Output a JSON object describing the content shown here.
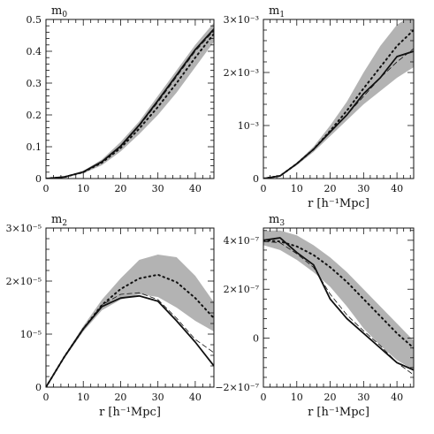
{
  "chart_data": [
    {
      "type": "line",
      "title": "m",
      "title_sub": "0",
      "xlabel": "",
      "ylabel": "",
      "xlim": [
        0,
        45
      ],
      "ylim": [
        0,
        0.5
      ],
      "x_ticks": [
        {
          "value": 0,
          "label": "0"
        },
        {
          "value": 10,
          "label": "10"
        },
        {
          "value": 20,
          "label": "20"
        },
        {
          "value": 30,
          "label": "30"
        },
        {
          "value": 40,
          "label": "40"
        }
      ],
      "y_ticks": [
        {
          "value": 0,
          "label": "0"
        },
        {
          "value": 0.1,
          "label": "0.1"
        },
        {
          "value": 0.2,
          "label": "0.2"
        },
        {
          "value": 0.3,
          "label": "0.3"
        },
        {
          "value": 0.4,
          "label": "0.4"
        },
        {
          "value": 0.5,
          "label": "0.5"
        }
      ],
      "x": [
        0,
        5,
        10,
        15,
        20,
        25,
        30,
        35,
        40,
        45
      ],
      "band": {
        "lower": [
          0,
          0.004,
          0.016,
          0.042,
          0.085,
          0.14,
          0.2,
          0.27,
          0.35,
          0.43
        ],
        "upper": [
          0,
          0.006,
          0.024,
          0.06,
          0.115,
          0.18,
          0.26,
          0.34,
          0.42,
          0.49
        ]
      },
      "series": [
        {
          "style": "dotted",
          "values": [
            0,
            0.005,
            0.02,
            0.05,
            0.096,
            0.157,
            0.225,
            0.3,
            0.38,
            0.455
          ]
        },
        {
          "style": "solid-thick",
          "values": [
            0,
            0.005,
            0.021,
            0.053,
            0.102,
            0.168,
            0.245,
            0.325,
            0.405,
            0.47
          ]
        },
        {
          "style": "solid-thin",
          "values": [
            0,
            0.005,
            0.02,
            0.052,
            0.1,
            0.165,
            0.24,
            0.32,
            0.4,
            0.465
          ]
        }
      ]
    },
    {
      "type": "line",
      "title": "m",
      "title_sub": "1",
      "xlabel": "r [h⁻¹Mpc]",
      "ylabel": "",
      "xlim": [
        0,
        45
      ],
      "ylim": [
        0,
        0.003
      ],
      "x_ticks": [
        {
          "value": 0,
          "label": "0"
        },
        {
          "value": 10,
          "label": "10"
        },
        {
          "value": 20,
          "label": "20"
        },
        {
          "value": 30,
          "label": "30"
        },
        {
          "value": 40,
          "label": "40"
        }
      ],
      "y_ticks": [
        {
          "value": 0,
          "label": "0"
        },
        {
          "value": 0.001,
          "label": "10⁻³"
        },
        {
          "value": 0.002,
          "label": "2×10⁻³"
        },
        {
          "value": 0.003,
          "label": "3×10⁻³"
        }
      ],
      "x": [
        0,
        5,
        10,
        15,
        20,
        25,
        30,
        35,
        40,
        45
      ],
      "band": {
        "lower": [
          0,
          4e-05,
          0.00025,
          0.0005,
          0.0008,
          0.0011,
          0.0014,
          0.00165,
          0.0019,
          0.0021
        ],
        "upper": [
          0,
          6e-05,
          0.0003,
          0.0006,
          0.001,
          0.00145,
          0.002,
          0.0025,
          0.0029,
          0.0031
        ]
      },
      "series": [
        {
          "style": "dotted",
          "values": [
            0,
            5e-05,
            0.00028,
            0.00055,
            0.0009,
            0.00128,
            0.0017,
            0.0021,
            0.0025,
            0.0028
          ]
        },
        {
          "style": "solid-thick",
          "values": [
            0,
            5e-05,
            0.00028,
            0.00055,
            0.00088,
            0.0012,
            0.0016,
            0.0019,
            0.0023,
            0.0024
          ]
        },
        {
          "style": "solid-thin",
          "values": [
            0,
            5e-05,
            0.00028,
            0.00055,
            0.00087,
            0.0012,
            0.00155,
            0.0019,
            0.0022,
            0.00245
          ]
        }
      ]
    },
    {
      "type": "line",
      "title": "m",
      "title_sub": "2",
      "xlabel": "r [h⁻¹Mpc]",
      "ylabel": "",
      "xlim": [
        0,
        45
      ],
      "ylim": [
        0,
        3e-05
      ],
      "x_ticks": [
        {
          "value": 0,
          "label": "0"
        },
        {
          "value": 10,
          "label": "10"
        },
        {
          "value": 20,
          "label": "20"
        },
        {
          "value": 30,
          "label": "30"
        },
        {
          "value": 40,
          "label": "40"
        }
      ],
      "y_ticks": [
        {
          "value": 0,
          "label": "0"
        },
        {
          "value": 1e-05,
          "label": "10⁻⁵"
        },
        {
          "value": 2e-05,
          "label": "2×10⁻⁵"
        },
        {
          "value": 3e-05,
          "label": "3×10⁻⁵"
        }
      ],
      "x": [
        0,
        5,
        10,
        15,
        20,
        25,
        30,
        35,
        40,
        45
      ],
      "band": {
        "lower": [
          0,
          5.5e-06,
          1.05e-05,
          1.45e-05,
          1.65e-05,
          1.75e-05,
          1.7e-05,
          1.5e-05,
          1.25e-05,
          1.05e-05
        ],
        "upper": [
          0,
          6e-06,
          1.15e-05,
          1.65e-05,
          2.05e-05,
          2.4e-05,
          2.5e-05,
          2.45e-05,
          2.1e-05,
          1.6e-05
        ]
      },
      "series": [
        {
          "style": "dotted",
          "values": [
            0,
            5.8e-06,
            1.1e-05,
            1.55e-05,
            1.85e-05,
            2.05e-05,
            2.12e-05,
            1.98e-05,
            1.68e-05,
            1.3e-05
          ]
        },
        {
          "style": "solid-thick",
          "values": [
            0,
            5.8e-06,
            1.1e-05,
            1.52e-05,
            1.68e-05,
            1.72e-05,
            1.62e-05,
            1.25e-05,
            8.5e-06,
            4e-06
          ]
        },
        {
          "style": "solid-thin",
          "values": [
            0,
            5.8e-06,
            1.1e-05,
            1.55e-05,
            1.75e-05,
            1.78e-05,
            1.65e-05,
            1.3e-05,
            9e-06,
            6.5e-06
          ]
        }
      ]
    },
    {
      "type": "line",
      "title": "m",
      "title_sub": "3",
      "xlabel": "r [h⁻¹Mpc]",
      "ylabel": "",
      "xlim": [
        0,
        45
      ],
      "ylim": [
        -2e-07,
        4.5e-07
      ],
      "x_ticks": [
        {
          "value": 0,
          "label": "0"
        },
        {
          "value": 10,
          "label": "10"
        },
        {
          "value": 20,
          "label": "20"
        },
        {
          "value": 30,
          "label": "30"
        },
        {
          "value": 40,
          "label": "40"
        }
      ],
      "y_ticks": [
        {
          "value": -2e-07,
          "label": "−2×10⁻⁷"
        },
        {
          "value": 0,
          "label": "0"
        },
        {
          "value": 2e-07,
          "label": "2×10⁻⁷"
        },
        {
          "value": 4e-07,
          "label": "4×10⁻⁷"
        }
      ],
      "x": [
        0,
        5,
        10,
        15,
        20,
        25,
        30,
        35,
        40,
        45
      ],
      "band": {
        "lower": [
          3.8e-07,
          3.6e-07,
          3.2e-07,
          2.7e-07,
          2.1e-07,
          1.3e-07,
          4e-08,
          -3e-08,
          -9e-08,
          -1.3e-07
        ],
        "upper": [
          4.4e-07,
          4.4e-07,
          4.2e-07,
          3.8e-07,
          3.3e-07,
          2.7e-07,
          2e-07,
          1.3e-07,
          6e-08,
          -1e-08
        ]
      },
      "series": [
        {
          "style": "dotted",
          "values": [
            4e-07,
            3.95e-07,
            3.75e-07,
            3.4e-07,
            2.9e-07,
            2.3e-07,
            1.6e-07,
            9e-08,
            2e-08,
            -4e-08
          ]
        },
        {
          "style": "solid-thick",
          "values": [
            4e-07,
            4.1e-07,
            3.5e-07,
            3e-07,
            1.6e-07,
            8e-08,
            2e-08,
            -4e-08,
            -1e-07,
            -1.3e-07
          ]
        },
        {
          "style": "solid-thin",
          "values": [
            3.95e-07,
            3.9e-07,
            3.45e-07,
            2.9e-07,
            1.8e-07,
            9.5e-08,
            3e-08,
            -3e-08,
            -1e-07,
            -1.5e-07
          ]
        }
      ]
    }
  ],
  "colors": {
    "band": "#b3b3b3",
    "line": "#111111",
    "axes": "#111111"
  }
}
